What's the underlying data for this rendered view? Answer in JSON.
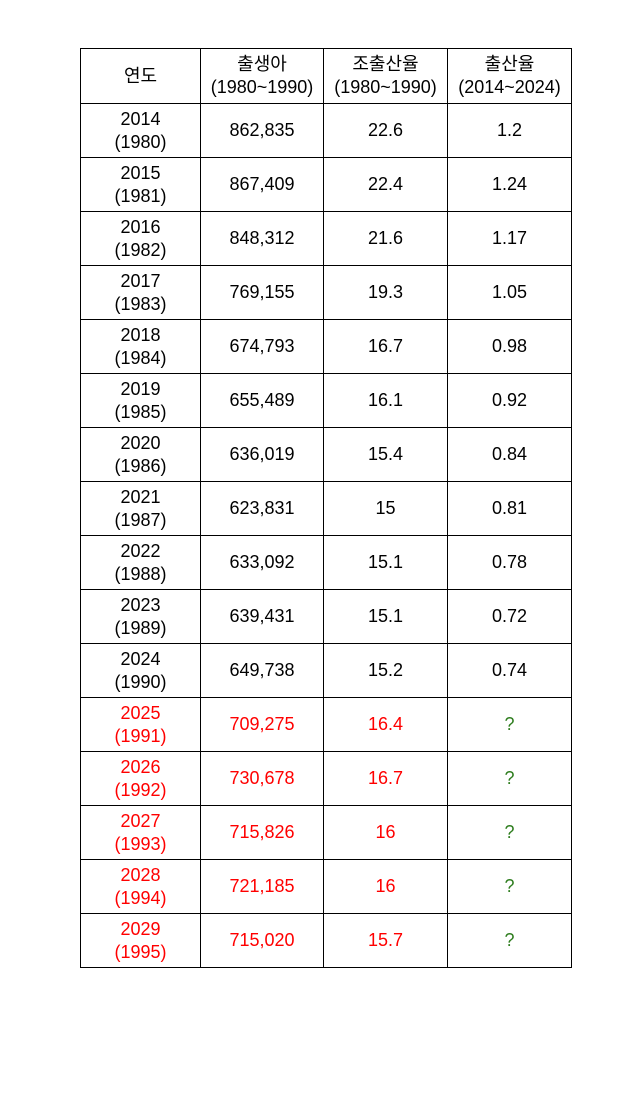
{
  "header": {
    "year": "연도",
    "births": "출생아",
    "births_period": "(1980~1990)",
    "crude_rate": "조출산율",
    "crude_rate_period": "(1980~1990)",
    "fertility_rate": "출산율",
    "fertility_rate_period": "(2014~2024)"
  },
  "rows": [
    {
      "year": "2014",
      "ref_year": "(1980)",
      "births": "862,835",
      "crude_rate": "22.6",
      "fertility_rate": "1.2"
    },
    {
      "year": "2015",
      "ref_year": "(1981)",
      "births": "867,409",
      "crude_rate": "22.4",
      "fertility_rate": "1.24"
    },
    {
      "year": "2016",
      "ref_year": "(1982)",
      "births": "848,312",
      "crude_rate": "21.6",
      "fertility_rate": "1.17"
    },
    {
      "year": "2017",
      "ref_year": "(1983)",
      "births": "769,155",
      "crude_rate": "19.3",
      "fertility_rate": "1.05"
    },
    {
      "year": "2018",
      "ref_year": "(1984)",
      "births": "674,793",
      "crude_rate": "16.7",
      "fertility_rate": "0.98"
    },
    {
      "year": "2019",
      "ref_year": "(1985)",
      "births": "655,489",
      "crude_rate": "16.1",
      "fertility_rate": "0.92"
    },
    {
      "year": "2020",
      "ref_year": "(1986)",
      "births": "636,019",
      "crude_rate": "15.4",
      "fertility_rate": "0.84"
    },
    {
      "year": "2021",
      "ref_year": "(1987)",
      "births": "623,831",
      "crude_rate": "15",
      "fertility_rate": "0.81"
    },
    {
      "year": "2022",
      "ref_year": "(1988)",
      "births": "633,092",
      "crude_rate": "15.1",
      "fertility_rate": "0.78"
    },
    {
      "year": "2023",
      "ref_year": "(1989)",
      "births": "639,431",
      "crude_rate": "15.1",
      "fertility_rate": "0.72"
    },
    {
      "year": "2024",
      "ref_year": "(1990)",
      "births": "649,738",
      "crude_rate": "15.2",
      "fertility_rate": "0.74"
    },
    {
      "year": "2025",
      "ref_year": "(1991)",
      "births": "709,275",
      "crude_rate": "16.4",
      "fertility_rate": "?"
    },
    {
      "year": "2026",
      "ref_year": "(1992)",
      "births": "730,678",
      "crude_rate": "16.7",
      "fertility_rate": "?"
    },
    {
      "year": "2027",
      "ref_year": "(1993)",
      "births": "715,826",
      "crude_rate": "16",
      "fertility_rate": "?"
    },
    {
      "year": "2028",
      "ref_year": "(1994)",
      "births": "721,185",
      "crude_rate": "16",
      "fertility_rate": "?"
    },
    {
      "year": "2029",
      "ref_year": "(1995)",
      "births": "715,020",
      "crude_rate": "15.7",
      "fertility_rate": "?"
    }
  ],
  "colors": {
    "past_text": "#000000",
    "future_text": "#ff0000",
    "unknown_text": "#2e7d1e"
  }
}
